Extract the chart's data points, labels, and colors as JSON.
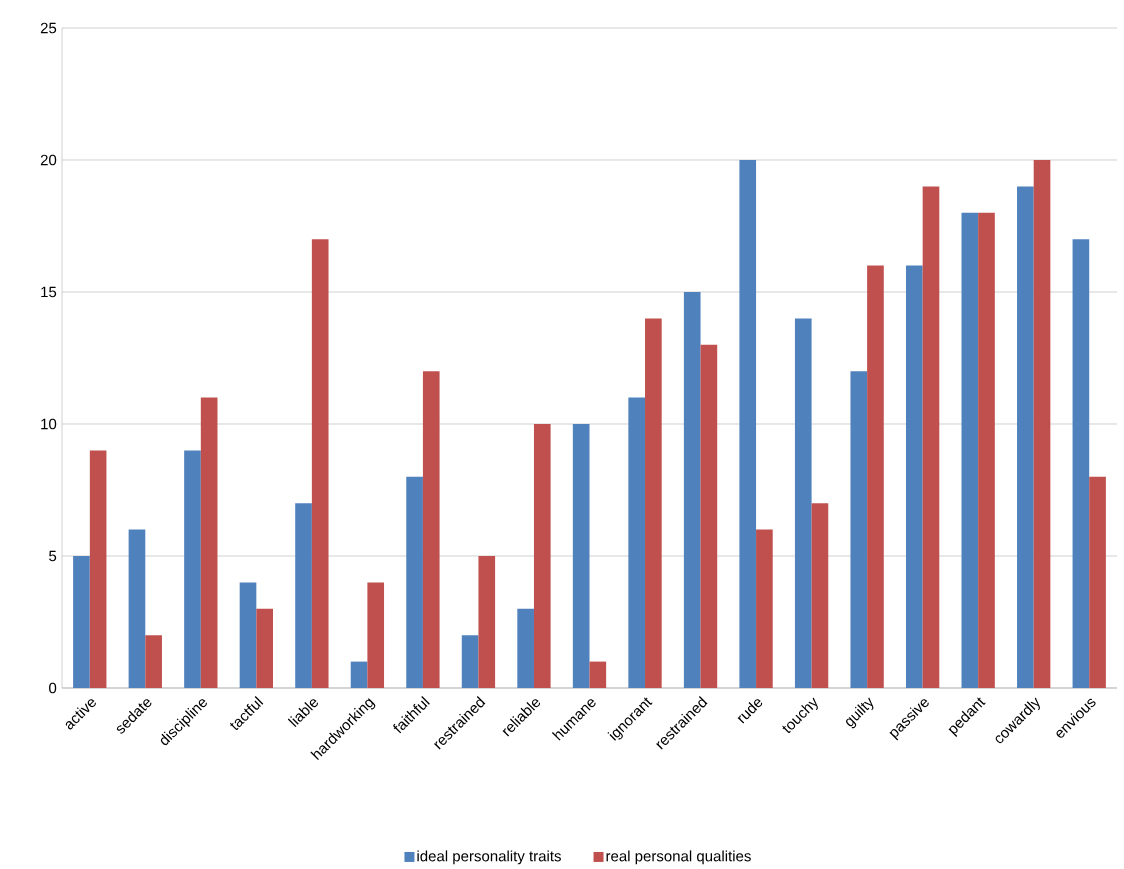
{
  "chart_data": {
    "type": "bar",
    "categories": [
      "active",
      "sedate",
      "discipline",
      "tactful",
      "liable",
      "hardworking",
      "faithful",
      "restrained",
      "reliable",
      "humane",
      "ignorant",
      "restrained",
      "rude",
      "touchy",
      "guilty",
      "passive",
      "pedant",
      "cowardly",
      "envious"
    ],
    "series": [
      {
        "name": "ideal personality traits",
        "color": "#4f81bd",
        "values": [
          5,
          6,
          9,
          4,
          7,
          1,
          8,
          2,
          3,
          10,
          11,
          15,
          20,
          14,
          12,
          16,
          18,
          19,
          17
        ]
      },
      {
        "name": "real personal qualities",
        "color": "#c0504d",
        "values": [
          9,
          2,
          11,
          3,
          17,
          4,
          12,
          5,
          10,
          1,
          14,
          13,
          6,
          7,
          16,
          19,
          18,
          20,
          8
        ]
      }
    ],
    "ylim": [
      0,
      25
    ],
    "yticks": [
      0,
      5,
      10,
      15,
      20,
      25
    ],
    "grid": "y",
    "legend": "bottom"
  }
}
